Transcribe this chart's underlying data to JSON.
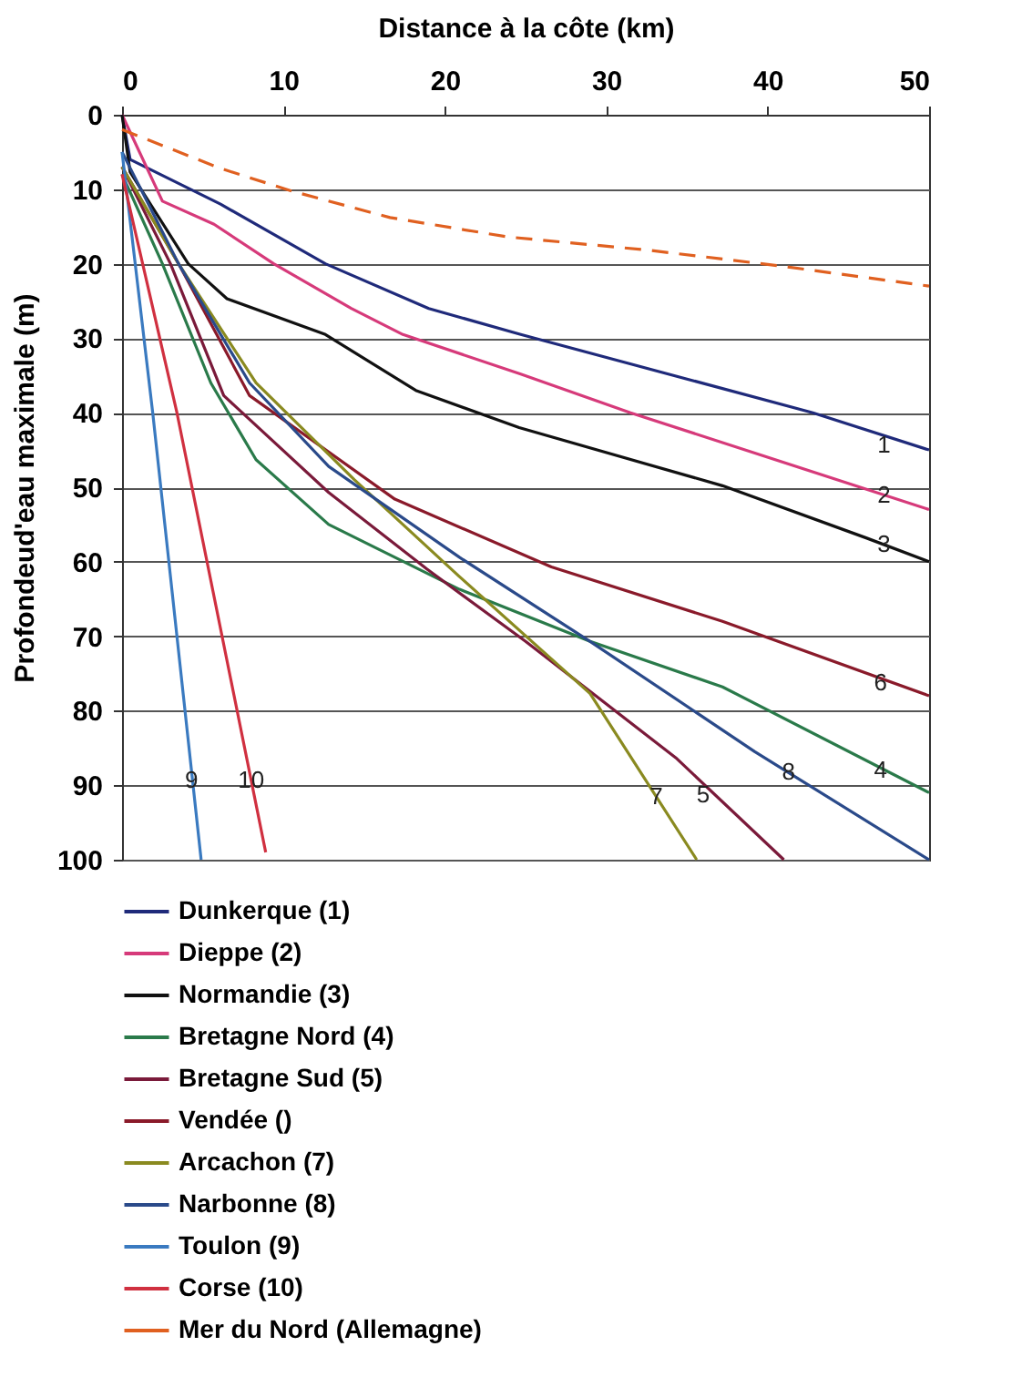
{
  "chart_data": {
    "type": "line",
    "xlabel": "Distance à la côte (km)",
    "ylabel": "Profondeud'eau maximale (m)",
    "xlim": [
      0,
      50
    ],
    "xticks": [
      0,
      10,
      20,
      30,
      40,
      50
    ],
    "ylim": [
      100,
      0
    ],
    "yticks": [
      0,
      10,
      20,
      30,
      40,
      50,
      60,
      70,
      80,
      90,
      100
    ],
    "grid": "y",
    "legend": "bottom",
    "line_style": "solid",
    "marker": "none",
    "series": [
      {
        "name": "Dunkerque (1)",
        "color": "#1f2a7a",
        "x": [
          0,
          0.5,
          6.1,
          12.6,
          19,
          24.7,
          42.8,
          50
        ],
        "values": [
          0,
          6,
          12,
          20,
          26,
          29.5,
          40,
          45
        ]
      },
      {
        "name": "Dieppe (2)",
        "color": "#d63a7a",
        "x": [
          0,
          2.5,
          5.7,
          9.4,
          14.2,
          17.4,
          24.7,
          31.5,
          50
        ],
        "values": [
          0,
          11.6,
          14.7,
          20,
          26,
          29.5,
          34.8,
          40,
          53
        ]
      },
      {
        "name": "Normandie (3)",
        "color": "#111111",
        "x": [
          0,
          0.5,
          4.1,
          6.5,
          12.6,
          18.2,
          24.6,
          37.2,
          46.1,
          50
        ],
        "values": [
          0,
          7.7,
          20,
          24.7,
          29.5,
          37,
          42,
          49.8,
          56.8,
          60
        ]
      },
      {
        "name": "Bretagne Nord (4)",
        "color": "#2a7a4a",
        "x": [
          0,
          2.5,
          5.5,
          8.3,
          12.8,
          20.9,
          29,
          37.2,
          50
        ],
        "values": [
          8,
          20,
          36,
          46.3,
          55,
          63.7,
          70.7,
          76.8,
          91
        ]
      },
      {
        "name": "Bretagne Sud (5)",
        "color": "#7a1a3a",
        "x": [
          0,
          3,
          6.3,
          12.8,
          18.9,
          25,
          34.3,
          41
        ],
        "values": [
          7,
          20,
          37.7,
          50.7,
          61,
          70.7,
          86.3,
          100
        ]
      },
      {
        "name": "Vendée ()",
        "color": "#8a1a2a",
        "x": [
          0,
          3.5,
          7.9,
          16.9,
          26.6,
          37.2,
          50
        ],
        "values": [
          7,
          20,
          37.7,
          51.6,
          60.7,
          68,
          78
        ]
      },
      {
        "name": "Arcachon (7)",
        "color": "#8a8a20",
        "x": [
          0,
          3.5,
          8.3,
          14.4,
          20.9,
          29,
          35.6
        ],
        "values": [
          7,
          20,
          36,
          49,
          62,
          77.7,
          100
        ]
      },
      {
        "name": "Narbonne (8)",
        "color": "#2a4a8a",
        "x": [
          0,
          3.5,
          7.9,
          12.8,
          20.9,
          29,
          39.2,
          50
        ],
        "values": [
          5,
          20,
          36,
          47.2,
          59.4,
          70.7,
          85.5,
          100
        ]
      },
      {
        "name": "Toulon (9)",
        "color": "#3a7ac0",
        "x": [
          0,
          1.9,
          4.9
        ],
        "values": [
          5,
          40,
          100
        ]
      },
      {
        "name": "Corse (10)",
        "color": "#d03040",
        "x": [
          0,
          3.4,
          8.9
        ],
        "values": [
          8,
          40,
          99
        ]
      },
      {
        "name": "Mer du Nord (Allemagne)",
        "color": "#e06020",
        "line_style": "dashed",
        "x": [
          0,
          6.1,
          10.6,
          16.6,
          23.9,
          32.7,
          40.8,
          50
        ],
        "values": [
          2,
          7.2,
          10.3,
          13.8,
          16.4,
          18.2,
          20.3,
          23
        ]
      }
    ],
    "annotations": [
      {
        "text": "1",
        "x": 47.2,
        "y": 44.4
      },
      {
        "text": "2",
        "x": 47.2,
        "y": 51.1
      },
      {
        "text": "3",
        "x": 47.2,
        "y": 57.7
      },
      {
        "text": "6",
        "x": 47,
        "y": 76.3
      },
      {
        "text": "4",
        "x": 47,
        "y": 88
      },
      {
        "text": "8",
        "x": 41.3,
        "y": 88.3
      },
      {
        "text": "5",
        "x": 36,
        "y": 91.3
      },
      {
        "text": "7",
        "x": 33.1,
        "y": 91.6
      },
      {
        "text": "9",
        "x": 4.3,
        "y": 89.4
      },
      {
        "text": "10",
        "x": 8,
        "y": 89.4
      }
    ]
  }
}
